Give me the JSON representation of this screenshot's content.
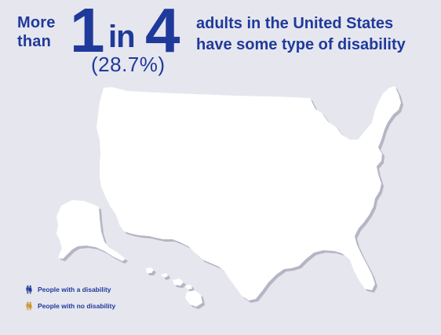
{
  "headline": {
    "lead_line1": "More",
    "lead_line2": "than",
    "numerator": "1",
    "connector": "in",
    "denominator": "4",
    "percent": "(28.7%)",
    "tail_line1": "adults in the United States",
    "tail_line2": "have some type of disability"
  },
  "legend": {
    "disability_label": "People with a disability",
    "no_disability_label": "People with no disability"
  },
  "colors": {
    "background": "#e6e6ef",
    "disability": "#1f3a9a",
    "no_disability": "#c9962b",
    "map_fill": "#ffffff",
    "map_shadow": "#b5b5c4",
    "text": "#1f3a9a"
  },
  "icons": {
    "person": "person-icon",
    "male": "male-figure-icon",
    "female": "female-figure-icon"
  }
}
